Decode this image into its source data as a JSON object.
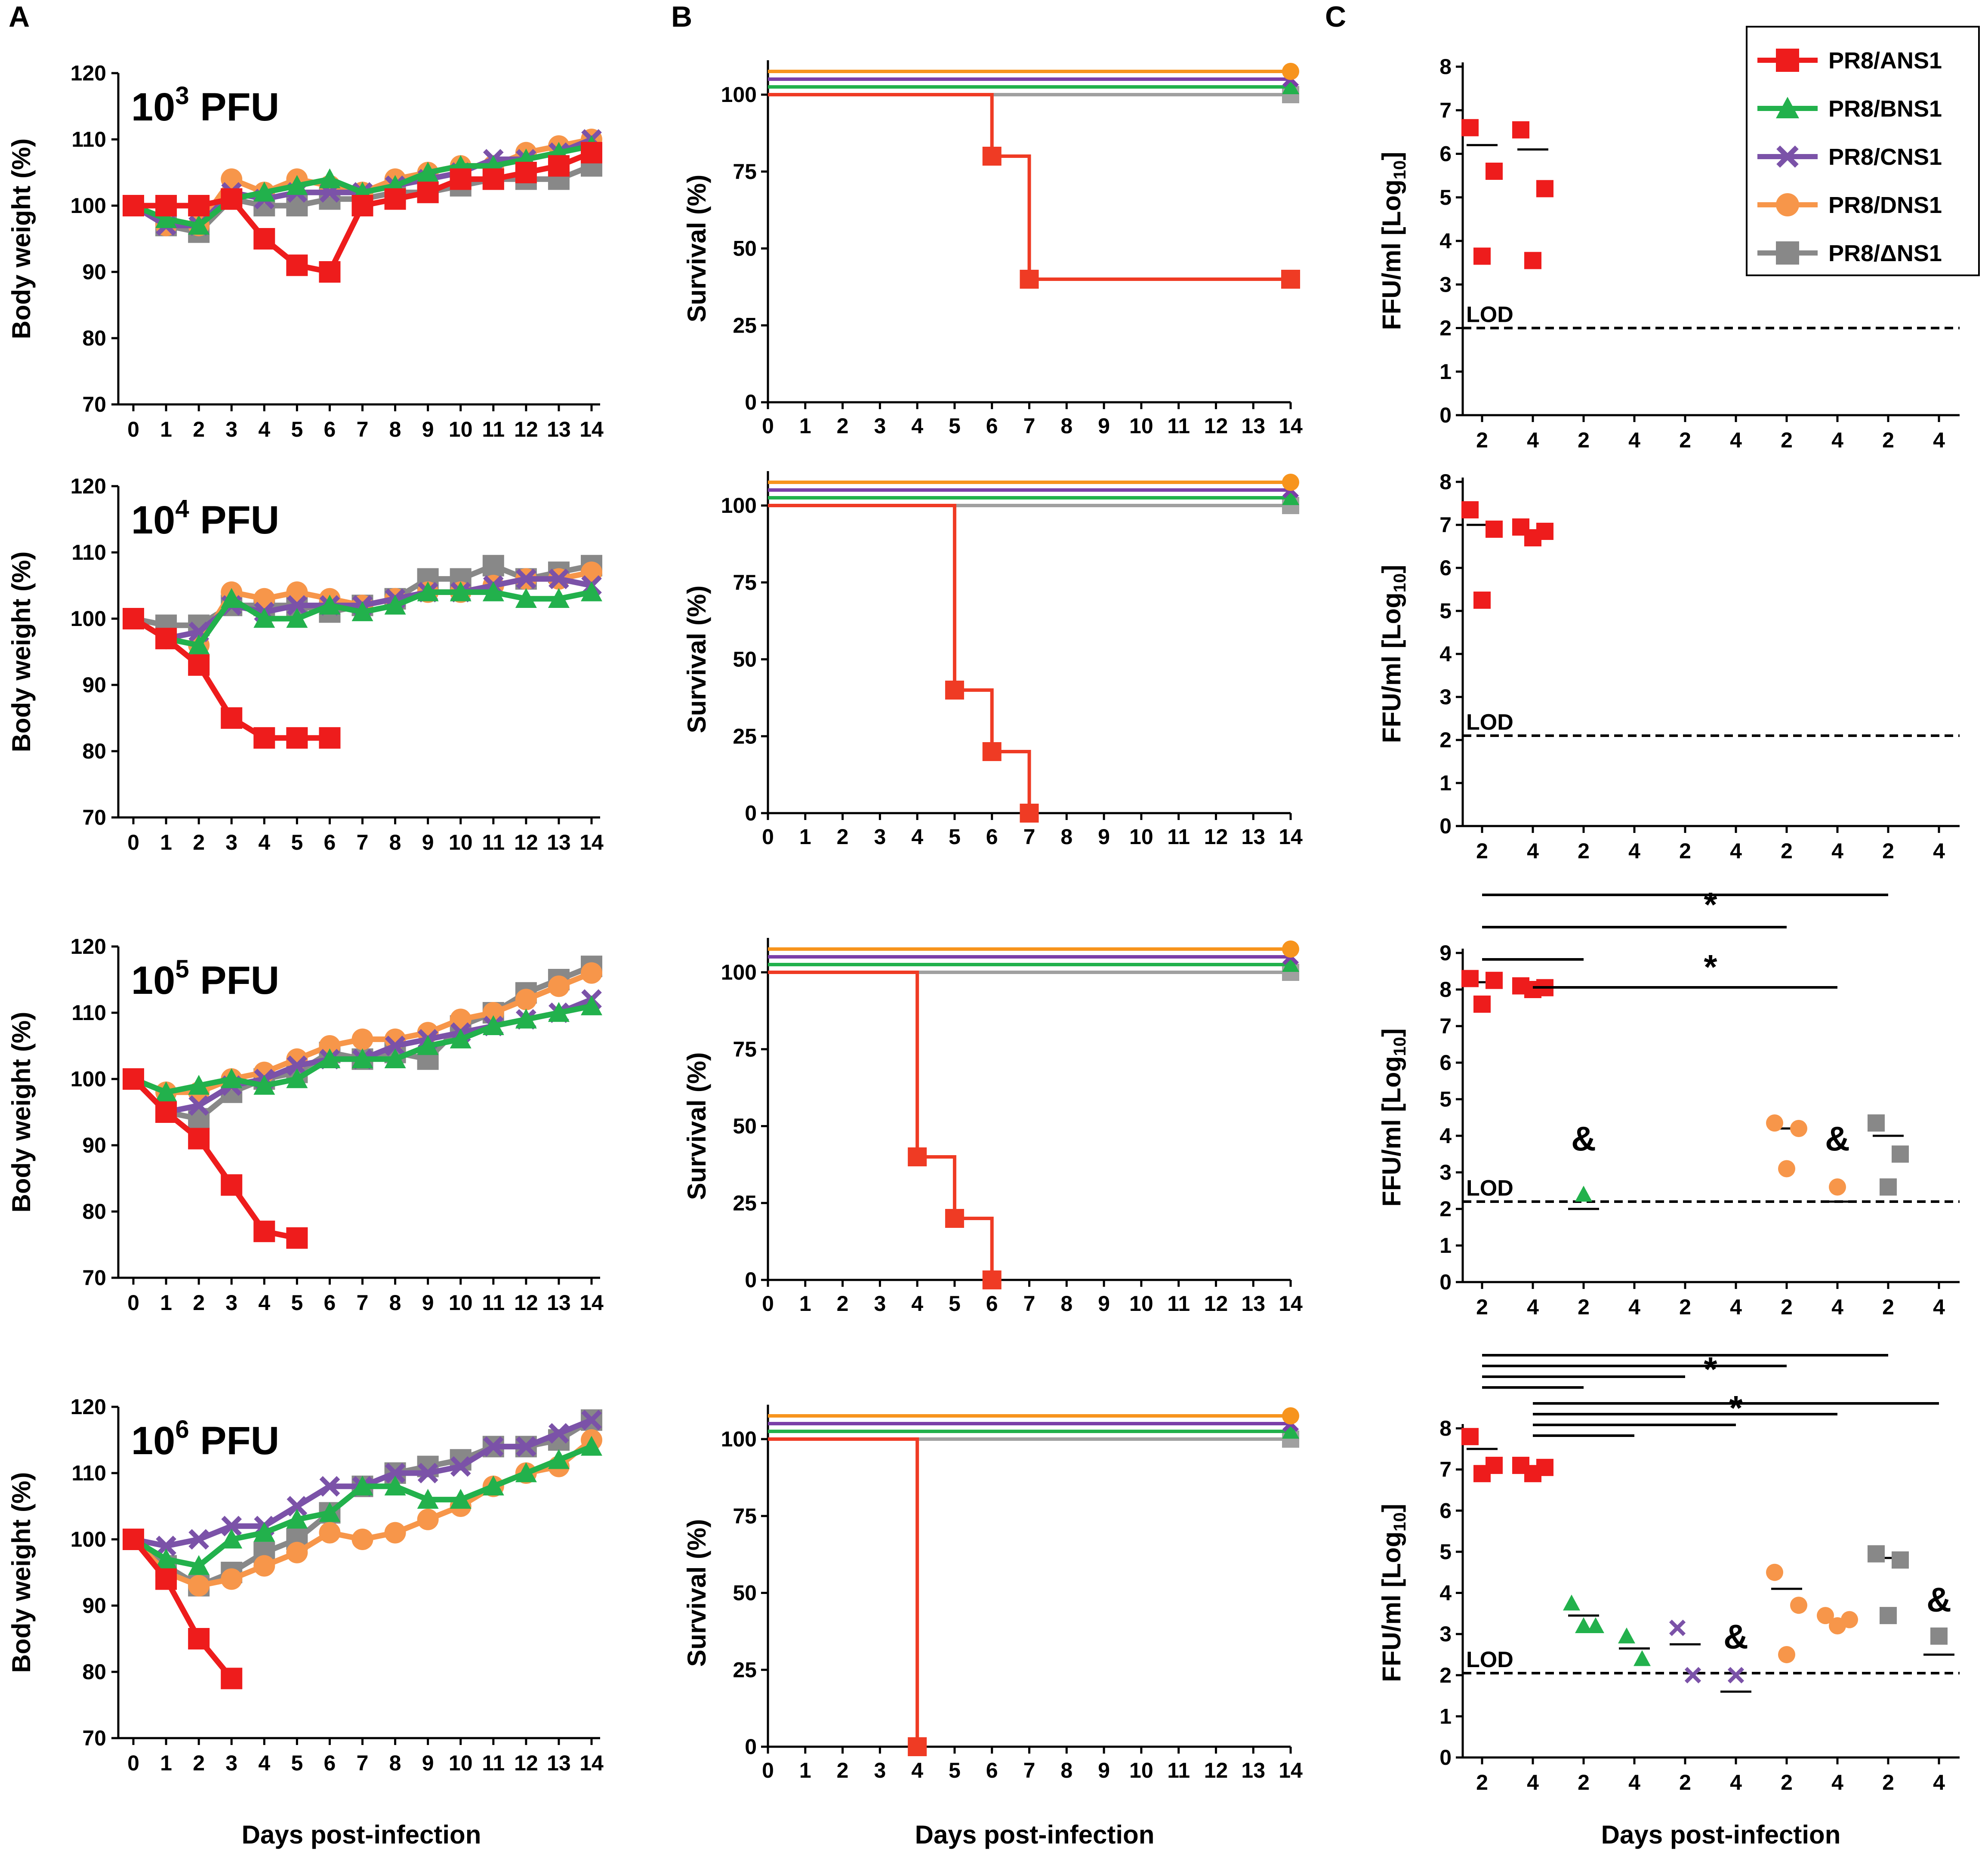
{
  "panel_letters": [
    "A",
    "B",
    "C"
  ],
  "series": [
    {
      "name": "PR8/ANS1",
      "color": "#ee1c1c",
      "surv_color": "#ef3b24",
      "marker": "square"
    },
    {
      "name": "PR8/BNS1",
      "color": "#22b14c",
      "surv_color": "#22b14c",
      "marker": "triangle"
    },
    {
      "name": "PR8/CNS1",
      "color": "#7b52a8",
      "surv_color": "#7b3fa8",
      "marker": "x"
    },
    {
      "name": "PR8/DNS1",
      "color": "#f7964a",
      "surv_color": "#f7941d",
      "marker": "circle"
    },
    {
      "name": "PR8/ΔNS1",
      "color": "#888888",
      "surv_color": "#a0a0a0",
      "marker": "square"
    }
  ],
  "x_axis_title": "Days post-infection",
  "chart_data": [
    {
      "panel": "A",
      "type": "line",
      "ylabel": "Body weight (%)",
      "xlabel": "Days post-infection",
      "ylim": [
        70,
        120
      ],
      "yticks": [
        70,
        80,
        90,
        100,
        110,
        120
      ],
      "x": [
        0,
        1,
        2,
        3,
        4,
        5,
        6,
        7,
        8,
        9,
        10,
        11,
        12,
        13,
        14
      ],
      "rows": [
        {
          "dose_base": "10",
          "dose_exp": "3",
          "dose_unit": "PFU",
          "series": [
            {
              "name": "PR8/ANS1",
              "values": [
                100,
                100,
                100,
                101,
                95,
                91,
                90,
                100,
                101,
                102,
                104,
                104,
                105,
                106,
                108
              ]
            },
            {
              "name": "PR8/BNS1",
              "values": [
                100,
                98,
                97,
                101,
                102,
                103,
                104,
                102,
                103,
                105,
                106,
                106,
                107,
                108,
                109
              ]
            },
            {
              "name": "PR8/CNS1",
              "values": [
                100,
                97,
                97,
                102,
                101,
                102,
                102,
                102,
                103,
                104,
                105,
                107,
                107,
                108,
                110
              ]
            },
            {
              "name": "PR8/DNS1",
              "values": [
                100,
                97,
                97,
                104,
                102,
                104,
                103,
                102,
                104,
                105,
                106,
                106,
                108,
                109,
                110
              ]
            },
            {
              "name": "PR8/ΔNS1",
              "values": [
                100,
                97,
                96,
                101,
                100,
                100,
                101,
                101,
                102,
                102,
                103,
                104,
                104,
                104,
                106
              ]
            }
          ]
        },
        {
          "dose_base": "10",
          "dose_exp": "4",
          "dose_unit": "PFU",
          "series": [
            {
              "name": "PR8/ANS1",
              "values": [
                100,
                97,
                93,
                85,
                82,
                82,
                82
              ]
            },
            {
              "name": "PR8/BNS1",
              "values": [
                100,
                97,
                96,
                103,
                100,
                100,
                102,
                101,
                102,
                104,
                104,
                104,
                103,
                103,
                104
              ]
            },
            {
              "name": "PR8/CNS1",
              "values": [
                100,
                97,
                98,
                102,
                101,
                102,
                102,
                102,
                103,
                104,
                104,
                105,
                106,
                106,
                105
              ]
            },
            {
              "name": "PR8/DNS1",
              "values": [
                100,
                97,
                96,
                104,
                103,
                104,
                103,
                102,
                103,
                104,
                104,
                105,
                106,
                106,
                107
              ]
            },
            {
              "name": "PR8/ΔNS1",
              "values": [
                100,
                99,
                99,
                102,
                102,
                102,
                101,
                102,
                103,
                106,
                106,
                108,
                106,
                107,
                108
              ]
            }
          ]
        },
        {
          "dose_base": "10",
          "dose_exp": "5",
          "dose_unit": "PFU",
          "series": [
            {
              "name": "PR8/ANS1",
              "values": [
                100,
                95,
                91,
                84,
                77,
                76
              ]
            },
            {
              "name": "PR8/BNS1",
              "values": [
                100,
                98,
                99,
                100,
                99,
                100,
                103,
                103,
                103,
                105,
                106,
                108,
                109,
                110,
                111
              ]
            },
            {
              "name": "PR8/CNS1",
              "values": [
                100,
                95,
                96,
                99,
                100,
                102,
                103,
                103,
                105,
                106,
                107,
                108,
                109,
                110,
                112
              ]
            },
            {
              "name": "PR8/DNS1",
              "values": [
                100,
                98,
                98,
                100,
                101,
                103,
                105,
                106,
                106,
                107,
                109,
                110,
                112,
                114,
                116
              ]
            },
            {
              "name": "PR8/ΔNS1",
              "values": [
                100,
                95,
                94,
                98,
                100,
                101,
                104,
                103,
                104,
                103,
                108,
                110,
                113,
                115,
                117
              ]
            }
          ]
        },
        {
          "dose_base": "10",
          "dose_exp": "6",
          "dose_unit": "PFU",
          "series": [
            {
              "name": "PR8/ANS1",
              "values": [
                100,
                94,
                85,
                79
              ]
            },
            {
              "name": "PR8/BNS1",
              "values": [
                100,
                97,
                96,
                100,
                101,
                103,
                104,
                108,
                108,
                106,
                106,
                108,
                110,
                112,
                114
              ]
            },
            {
              "name": "PR8/CNS1",
              "values": [
                100,
                99,
                100,
                102,
                102,
                105,
                108,
                108,
                110,
                110,
                111,
                114,
                114,
                116,
                118
              ]
            },
            {
              "name": "PR8/DNS1",
              "values": [
                100,
                95,
                93,
                94,
                96,
                98,
                101,
                100,
                101,
                103,
                105,
                108,
                110,
                111,
                115
              ]
            },
            {
              "name": "PR8/ΔNS1",
              "values": [
                100,
                96,
                93,
                95,
                98,
                100,
                104,
                108,
                110,
                111,
                112,
                114,
                114,
                115,
                118
              ]
            }
          ]
        }
      ]
    },
    {
      "panel": "B",
      "type": "step",
      "ylabel": "Survival (%)",
      "xlabel": "Days post-infection",
      "ylim": [
        0,
        100
      ],
      "yticks": [
        0,
        25,
        50,
        75,
        100
      ],
      "xticks": [
        0,
        1,
        2,
        3,
        4,
        5,
        6,
        7,
        8,
        9,
        10,
        11,
        12,
        13,
        14
      ],
      "rows": [
        {
          "ans1_steps": [
            [
              0,
              100
            ],
            [
              6,
              80
            ],
            [
              7,
              40
            ],
            [
              14,
              40
            ]
          ],
          "others": 100
        },
        {
          "ans1_steps": [
            [
              0,
              100
            ],
            [
              5,
              40
            ],
            [
              6,
              20
            ],
            [
              7,
              0
            ]
          ],
          "others": 100
        },
        {
          "ans1_steps": [
            [
              0,
              100
            ],
            [
              4,
              40
            ],
            [
              5,
              20
            ],
            [
              6,
              0
            ]
          ],
          "others": 100
        },
        {
          "ans1_steps": [
            [
              0,
              100
            ],
            [
              4,
              0
            ]
          ],
          "others": 100
        }
      ]
    },
    {
      "panel": "C",
      "type": "scatter",
      "ylabel_main": "FFU/ml [Log",
      "ylabel_sub": "10",
      "ylabel_end": "]",
      "xlabel": "Days post-infection",
      "x_tick_labels": [
        "2",
        "4",
        "2",
        "4",
        "2",
        "4",
        "2",
        "4",
        "2",
        "4"
      ],
      "lod_label": "LOD",
      "rows": [
        {
          "ymax": 8,
          "lod": 2.0,
          "groups": [
            {
              "series": "PR8/ANS1",
              "day": 2,
              "points": [
                6.6,
                5.6,
                3.65
              ],
              "mean": 6.2
            },
            {
              "series": "PR8/ANS1",
              "day": 4,
              "points": [
                6.55,
                5.2,
                3.55
              ],
              "mean": 6.1
            }
          ],
          "stars": [],
          "brackets": [],
          "amps": []
        },
        {
          "ymax": 8,
          "lod": 2.1,
          "groups": [
            {
              "series": "PR8/ANS1",
              "day": 2,
              "points": [
                7.35,
                6.9,
                5.25
              ],
              "mean": 7.0
            },
            {
              "series": "PR8/ANS1",
              "day": 4,
              "points": [
                6.95,
                6.85,
                6.7
              ],
              "mean": 6.85
            }
          ],
          "stars": [],
          "brackets": [],
          "amps": []
        },
        {
          "ymax": 9,
          "lod": 2.2,
          "groups": [
            {
              "series": "PR8/ANS1",
              "day": 2,
              "points": [
                8.3,
                8.25,
                7.6
              ],
              "mean": 8.2
            },
            {
              "series": "PR8/ANS1",
              "day": 4,
              "points": [
                8.1,
                8.05,
                8.0
              ],
              "mean": 8.05
            },
            {
              "series": "PR8/BNS1",
              "day": 2,
              "points": [
                2.4
              ],
              "mean": 2.0
            },
            {
              "series": "PR8/DNS1",
              "day": 2,
              "points": [
                4.35,
                4.2,
                3.1
              ],
              "mean": 4.2
            },
            {
              "series": "PR8/DNS1",
              "day": 4,
              "points": [
                2.6
              ],
              "mean": 2.2
            },
            {
              "series": "PR8/ΔNS1",
              "day": 2,
              "points": [
                4.35,
                3.5,
                2.6
              ],
              "mean": 4.0
            }
          ],
          "amps": [
            {
              "pos": 2,
              "value": 3.6,
              "text": "&"
            },
            {
              "pos": 7,
              "value": 3.6,
              "text": "&"
            }
          ],
          "stars": [
            "*",
            "*"
          ]
        },
        {
          "ymax": 8,
          "lod": 2.05,
          "groups": [
            {
              "series": "PR8/ANS1",
              "day": 2,
              "points": [
                7.8,
                7.1,
                6.9
              ],
              "mean": 7.5
            },
            {
              "series": "PR8/ANS1",
              "day": 4,
              "points": [
                7.1,
                7.05,
                6.9
              ],
              "mean": 7.0
            },
            {
              "series": "PR8/BNS1",
              "day": 2,
              "points": [
                3.75,
                3.2,
                3.2
              ],
              "mean": 3.45
            },
            {
              "series": "PR8/BNS1",
              "day": 4,
              "points": [
                2.95,
                2.4
              ],
              "mean": 2.65
            },
            {
              "series": "PR8/CNS1",
              "day": 2,
              "points": [
                3.15,
                2.0
              ],
              "mean": 2.75
            },
            {
              "series": "PR8/CNS1",
              "day": 4,
              "points": [
                2.0
              ],
              "mean": 1.6
            },
            {
              "series": "PR8/DNS1",
              "day": 2,
              "points": [
                4.5,
                3.7,
                2.5
              ],
              "mean": 4.1
            },
            {
              "series": "PR8/DNS1",
              "day": 4,
              "points": [
                3.45,
                3.35,
                3.2
              ],
              "mean": 3.35
            },
            {
              "series": "PR8/ΔNS1",
              "day": 2,
              "points": [
                4.95,
                4.8,
                3.45
              ],
              "mean": 4.85
            },
            {
              "series": "PR8/ΔNS1",
              "day": 4,
              "points": [
                2.95
              ],
              "mean": 2.5
            }
          ],
          "amps": [
            {
              "pos": 5,
              "value": 2.65,
              "text": "&"
            },
            {
              "pos": 9,
              "value": 3.55,
              "text": "&"
            }
          ],
          "stars": [
            "*",
            "*"
          ]
        }
      ]
    }
  ]
}
